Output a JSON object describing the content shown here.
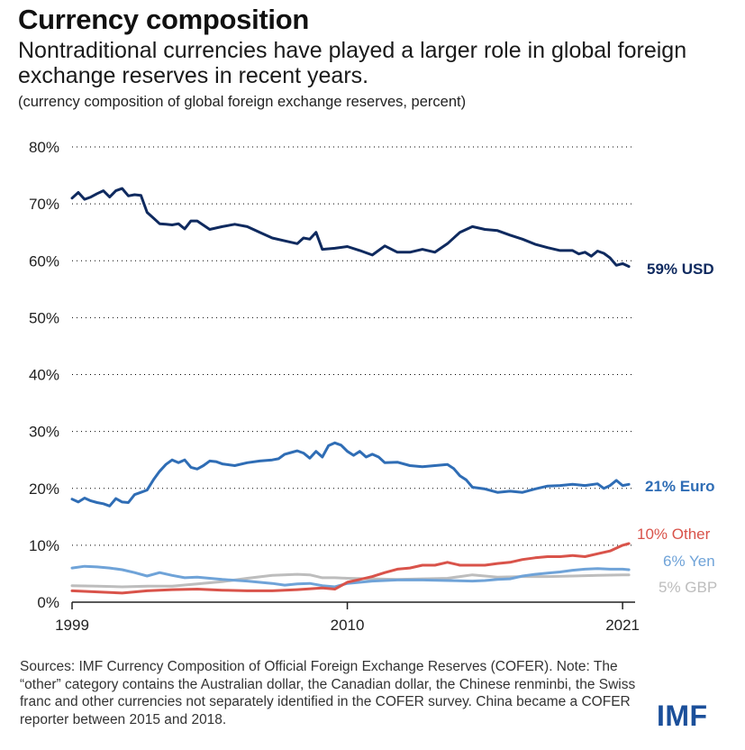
{
  "title": "Currency composition",
  "subtitle": "Nontraditional currencies have played a larger role in global foreign exchange reserves in recent years.",
  "note": "(currency composition of global foreign exchange reserves, percent)",
  "sources": "Sources: IMF Currency Composition of Official Foreign Exchange Reserves (COFER). Note: The “other” category contains the Australian dollar, the Canadian dollar, the Chinese renminbi, the Swiss franc and other currencies not separately identified in the COFER survey. China became a COFER reporter between 2015 and 2018.",
  "logo": "IMF",
  "colors": {
    "usd": "#0f2a5f",
    "euro": "#2f6db5",
    "other": "#d9534a",
    "yen": "#6fa3d8",
    "gbp": "#bdbdbd",
    "axis": "#222222",
    "gridline": "#000000"
  },
  "chart_data": {
    "type": "line",
    "xlim": [
      1999,
      2021.5
    ],
    "ylim": [
      0,
      80
    ],
    "yticks": [
      0,
      10,
      20,
      30,
      40,
      50,
      60,
      70,
      80
    ],
    "ytick_labels": [
      "0%",
      "10%",
      "20%",
      "30%",
      "40%",
      "50%",
      "60%",
      "70%",
      "80%"
    ],
    "xtick_labels": [
      {
        "value": 1999,
        "label": "1999"
      },
      {
        "value": 2010,
        "label": "2010"
      },
      {
        "value": 2021,
        "label": "2021"
      }
    ],
    "series": [
      {
        "name": "USD",
        "end_label": "59% USD",
        "color": "#0f2a5f",
        "x": [
          1999,
          1999.25,
          1999.5,
          1999.75,
          2000,
          2000.25,
          2000.5,
          2000.75,
          2001,
          2001.25,
          2001.5,
          2001.75,
          2002,
          2002.25,
          2002.5,
          2002.75,
          2003,
          2003.25,
          2003.5,
          2003.75,
          2004,
          2004.5,
          2005,
          2005.5,
          2006,
          2006.5,
          2007,
          2007.5,
          2008,
          2008.25,
          2008.5,
          2008.75,
          2009,
          2009.5,
          2010,
          2010.5,
          2011,
          2011.5,
          2012,
          2012.5,
          2013,
          2013.5,
          2014,
          2014.5,
          2015,
          2015.5,
          2016,
          2016.5,
          2017,
          2017.5,
          2018,
          2018.5,
          2019,
          2019.25,
          2019.5,
          2019.75,
          2020,
          2020.25,
          2020.5,
          2020.75,
          2021,
          2021.25
        ],
        "values": [
          71.0,
          72.0,
          70.8,
          71.2,
          71.8,
          72.3,
          71.2,
          72.3,
          72.7,
          71.4,
          71.6,
          71.5,
          68.5,
          67.5,
          66.5,
          66.4,
          66.3,
          66.5,
          65.6,
          67.0,
          67.0,
          65.5,
          66.0,
          66.4,
          66.0,
          65.0,
          64.0,
          63.5,
          63.0,
          64.0,
          63.8,
          65.0,
          62.0,
          62.2,
          62.5,
          61.8,
          61.0,
          62.6,
          61.5,
          61.5,
          62.0,
          61.5,
          63.0,
          65.0,
          66.0,
          65.5,
          65.3,
          64.5,
          63.8,
          62.9,
          62.3,
          61.8,
          61.8,
          61.2,
          61.5,
          60.8,
          61.7,
          61.3,
          60.5,
          59.2,
          59.5,
          59.0
        ]
      },
      {
        "name": "Euro",
        "end_label": "21% Euro",
        "color": "#2f6db5",
        "x": [
          1999,
          1999.25,
          1999.5,
          1999.75,
          2000,
          2000.25,
          2000.5,
          2000.75,
          2001,
          2001.25,
          2001.5,
          2001.75,
          2002,
          2002.25,
          2002.5,
          2002.75,
          2003,
          2003.25,
          2003.5,
          2003.75,
          2004,
          2004.25,
          2004.5,
          2004.75,
          2005,
          2005.5,
          2006,
          2006.5,
          2007,
          2007.25,
          2007.5,
          2007.75,
          2008,
          2008.25,
          2008.5,
          2008.75,
          2009,
          2009.25,
          2009.5,
          2009.75,
          2010,
          2010.25,
          2010.5,
          2010.75,
          2011,
          2011.25,
          2011.5,
          2012,
          2012.5,
          2013,
          2013.5,
          2014,
          2014.25,
          2014.5,
          2014.75,
          2015,
          2015.5,
          2016,
          2016.5,
          2017,
          2017.5,
          2018,
          2018.5,
          2019,
          2019.5,
          2020,
          2020.25,
          2020.5,
          2020.75,
          2021,
          2021.25
        ],
        "values": [
          18.1,
          17.6,
          18.3,
          17.8,
          17.5,
          17.3,
          16.9,
          18.2,
          17.6,
          17.5,
          18.9,
          19.3,
          19.7,
          21.5,
          23.0,
          24.2,
          25.0,
          24.5,
          25.0,
          23.7,
          23.4,
          24.0,
          24.8,
          24.7,
          24.3,
          24.0,
          24.5,
          24.8,
          25.0,
          25.2,
          26.0,
          26.3,
          26.6,
          26.2,
          25.3,
          26.5,
          25.5,
          27.5,
          28.0,
          27.6,
          26.5,
          25.8,
          26.5,
          25.5,
          26.0,
          25.5,
          24.5,
          24.6,
          24.0,
          23.8,
          24.0,
          24.2,
          23.5,
          22.2,
          21.5,
          20.2,
          19.9,
          19.3,
          19.5,
          19.3,
          19.9,
          20.4,
          20.5,
          20.7,
          20.5,
          20.8,
          20.0,
          20.5,
          21.4,
          20.5,
          20.7
        ]
      },
      {
        "name": "Other",
        "end_label": "10% Other",
        "color": "#d9534a",
        "x": [
          1999,
          2000,
          2001,
          2002,
          2003,
          2004,
          2005,
          2006,
          2007,
          2008,
          2009,
          2009.5,
          2010,
          2010.5,
          2011,
          2011.5,
          2012,
          2012.5,
          2013,
          2013.5,
          2014,
          2014.5,
          2015,
          2015.5,
          2016,
          2016.5,
          2017,
          2017.5,
          2018,
          2018.5,
          2019,
          2019.5,
          2020,
          2020.5,
          2021,
          2021.25
        ],
        "values": [
          2.0,
          1.8,
          1.6,
          2.0,
          2.2,
          2.3,
          2.1,
          2.0,
          2.0,
          2.2,
          2.5,
          2.3,
          3.5,
          4.0,
          4.5,
          5.2,
          5.8,
          6.0,
          6.5,
          6.5,
          7.0,
          6.5,
          6.5,
          6.5,
          6.8,
          7.0,
          7.5,
          7.8,
          8.0,
          8.0,
          8.2,
          8.0,
          8.5,
          9.0,
          10.0,
          10.3
        ]
      },
      {
        "name": "Yen",
        "end_label": "6% Yen",
        "color": "#6fa3d8",
        "x": [
          1999,
          1999.5,
          2000,
          2000.5,
          2001,
          2001.5,
          2002,
          2002.5,
          2003,
          2003.5,
          2004,
          2004.5,
          2005,
          2006,
          2007,
          2007.5,
          2008,
          2008.5,
          2009,
          2009.5,
          2010,
          2011,
          2012,
          2013,
          2014,
          2015,
          2015.5,
          2016,
          2016.5,
          2017,
          2017.5,
          2018,
          2018.5,
          2019,
          2019.5,
          2020,
          2020.5,
          2021,
          2021.25
        ],
        "values": [
          6.0,
          6.3,
          6.2,
          6.0,
          5.7,
          5.2,
          4.6,
          5.2,
          4.7,
          4.3,
          4.4,
          4.2,
          4.0,
          3.7,
          3.3,
          3.0,
          3.2,
          3.3,
          2.9,
          2.7,
          3.3,
          3.7,
          3.9,
          3.9,
          3.8,
          3.7,
          3.8,
          4.0,
          4.1,
          4.6,
          4.9,
          5.1,
          5.3,
          5.6,
          5.8,
          5.9,
          5.8,
          5.8,
          5.7
        ]
      },
      {
        "name": "GBP",
        "end_label": "5% GBP",
        "color": "#bdbdbd",
        "x": [
          1999,
          2000,
          2001,
          2002,
          2003,
          2004,
          2005,
          2006,
          2007,
          2008,
          2008.5,
          2009,
          2009.5,
          2010,
          2011,
          2012,
          2013,
          2014,
          2014.5,
          2015,
          2015.5,
          2016,
          2017,
          2018,
          2019,
          2020,
          2021,
          2021.25
        ],
        "values": [
          2.9,
          2.8,
          2.7,
          2.8,
          2.8,
          3.2,
          3.6,
          4.2,
          4.7,
          4.9,
          4.8,
          4.3,
          4.3,
          4.2,
          4.1,
          4.0,
          4.1,
          4.2,
          4.5,
          4.8,
          4.6,
          4.4,
          4.5,
          4.5,
          4.6,
          4.7,
          4.8,
          4.8
        ]
      }
    ]
  }
}
